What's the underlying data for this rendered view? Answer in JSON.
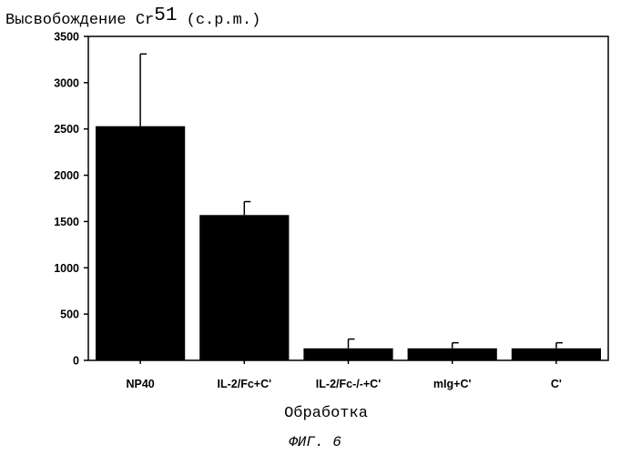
{
  "chart_data": {
    "type": "bar",
    "ylabel_main": "Высвобождение Cr",
    "ylabel_sup": "51",
    "ylabel_tail": " (c.p.m.)",
    "xlabel": "Обработка",
    "caption": "ФИГ. 6",
    "categories": [
      "NP40",
      "IL-2/Fc+C'",
      "IL-2/Fc-/-+C'",
      "mIg+C'",
      "C'"
    ],
    "values": [
      2530,
      1570,
      130,
      130,
      130
    ],
    "errors": [
      780,
      145,
      100,
      60,
      60
    ],
    "ylim": [
      0,
      3500
    ],
    "yticks": [
      0,
      500,
      1000,
      1500,
      2000,
      2500,
      3000,
      3500
    ],
    "bar_color": "#000000",
    "grid": false
  }
}
